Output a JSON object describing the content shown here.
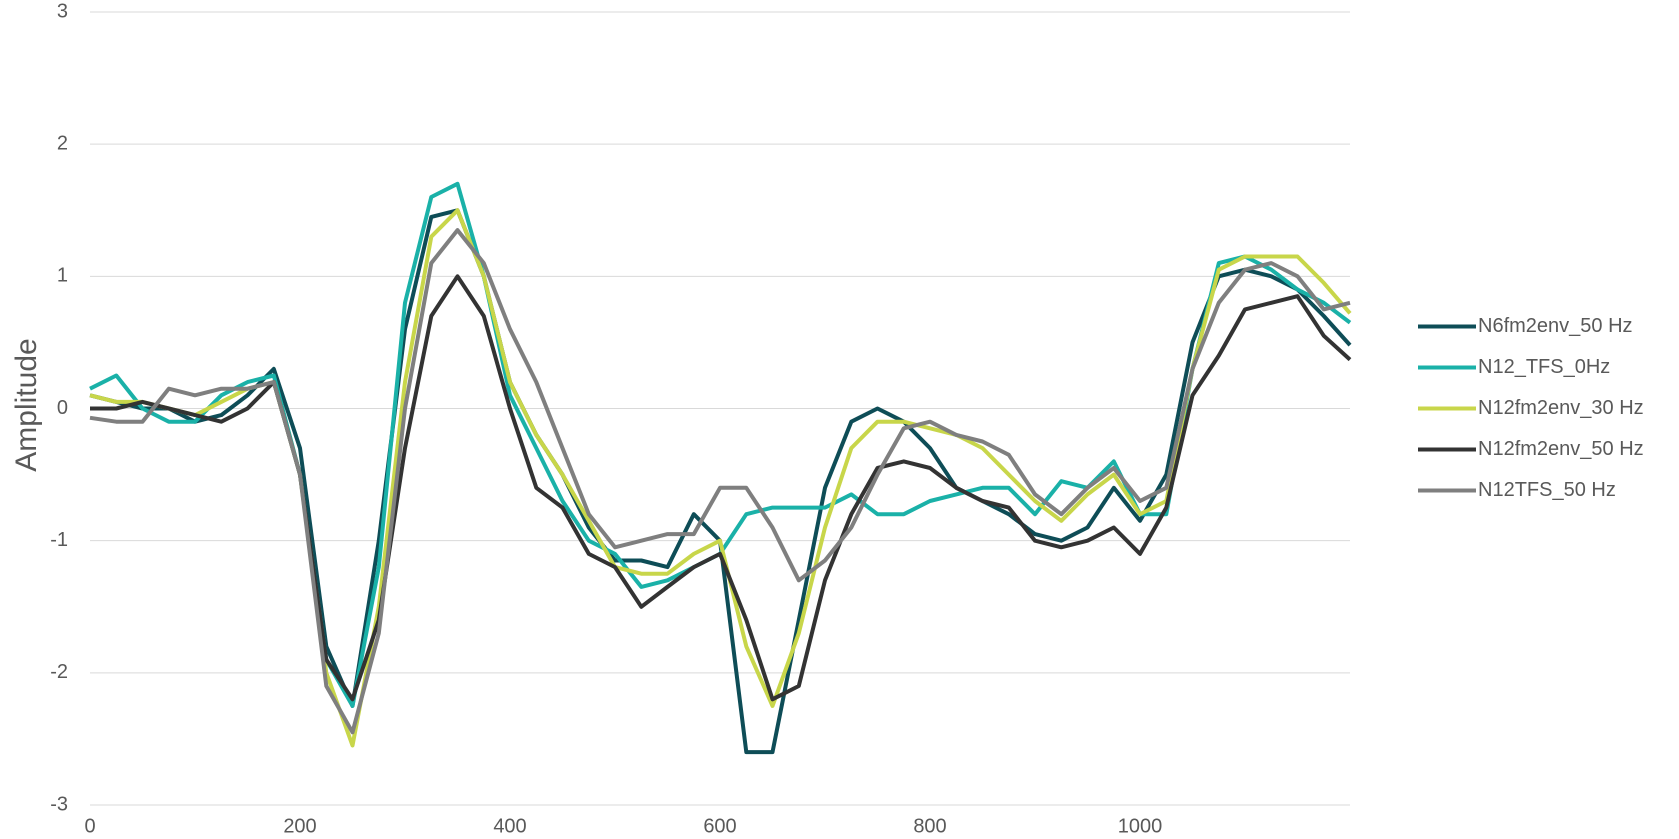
{
  "chart_data": {
    "type": "line",
    "y_label": "Amplitude",
    "x": [
      0,
      25,
      50,
      75,
      100,
      125,
      150,
      175,
      200,
      225,
      250,
      275,
      300,
      325,
      350,
      375,
      400,
      425,
      450,
      475,
      500,
      525,
      550,
      575,
      600,
      625,
      650,
      675,
      700,
      725,
      750,
      775,
      800,
      825,
      850,
      875,
      900,
      925,
      950,
      975,
      1000,
      1025,
      1050,
      1075,
      1100,
      1125,
      1150,
      1175,
      1200
    ],
    "series": [
      {
        "name": "N6fm2env_50 Hz",
        "color": "#0e4d57",
        "values": [
          0.1,
          0.05,
          0.0,
          0.0,
          -0.1,
          -0.05,
          0.1,
          0.3,
          -0.3,
          -1.8,
          -2.25,
          -1.0,
          0.6,
          1.45,
          1.5,
          1.0,
          0.2,
          -0.2,
          -0.5,
          -0.9,
          -1.15,
          -1.15,
          -1.2,
          -0.8,
          -1.0,
          -2.6,
          -2.6,
          -1.6,
          -0.6,
          -0.1,
          0.0,
          -0.1,
          -0.3,
          -0.6,
          -0.7,
          -0.8,
          -0.95,
          -1.0,
          -0.9,
          -0.6,
          -0.85,
          -0.5,
          0.5,
          1.0,
          1.05,
          1.0,
          0.9,
          0.7,
          0.48
        ]
      },
      {
        "name": "N12_TFS_0Hz",
        "color": "#1ab1a8",
        "values": [
          0.15,
          0.25,
          0.0,
          -0.1,
          -0.1,
          0.1,
          0.2,
          0.25,
          -0.5,
          -1.9,
          -2.25,
          -1.2,
          0.8,
          1.6,
          1.7,
          1.0,
          0.1,
          -0.3,
          -0.7,
          -1.0,
          -1.1,
          -1.35,
          -1.3,
          -1.2,
          -1.1,
          -0.8,
          -0.75,
          -0.75,
          -0.75,
          -0.65,
          -0.8,
          -0.8,
          -0.7,
          -0.65,
          -0.6,
          -0.6,
          -0.8,
          -0.55,
          -0.6,
          -0.4,
          -0.8,
          -0.8,
          0.3,
          1.1,
          1.15,
          1.05,
          0.9,
          0.8,
          0.65
        ]
      },
      {
        "name": "N12fm2env_30 Hz",
        "color": "#c8d64a",
        "values": [
          0.1,
          0.05,
          0.05,
          0.0,
          -0.05,
          0.05,
          0.15,
          0.2,
          -0.5,
          -2.0,
          -2.55,
          -1.5,
          0.2,
          1.3,
          1.5,
          1.0,
          0.2,
          -0.2,
          -0.5,
          -0.85,
          -1.2,
          -1.25,
          -1.25,
          -1.1,
          -1.0,
          -1.8,
          -2.25,
          -1.7,
          -0.9,
          -0.3,
          -0.1,
          -0.1,
          -0.15,
          -0.2,
          -0.3,
          -0.5,
          -0.7,
          -0.85,
          -0.65,
          -0.5,
          -0.8,
          -0.7,
          0.3,
          1.05,
          1.15,
          1.15,
          1.15,
          0.95,
          0.72
        ]
      },
      {
        "name": "N12fm2env_50 Hz",
        "color": "#333333",
        "values": [
          0.0,
          0.0,
          0.05,
          0.0,
          -0.05,
          -0.1,
          0.0,
          0.2,
          -0.5,
          -1.9,
          -2.2,
          -1.6,
          -0.3,
          0.7,
          1.0,
          0.7,
          0.0,
          -0.6,
          -0.75,
          -1.1,
          -1.2,
          -1.5,
          -1.35,
          -1.2,
          -1.1,
          -1.6,
          -2.2,
          -2.1,
          -1.3,
          -0.8,
          -0.45,
          -0.4,
          -0.45,
          -0.6,
          -0.7,
          -0.75,
          -1.0,
          -1.05,
          -1.0,
          -0.9,
          -1.1,
          -0.75,
          0.1,
          0.4,
          0.75,
          0.8,
          0.85,
          0.55,
          0.37
        ]
      },
      {
        "name": "N12TFS_50 Hz",
        "color": "#7f7f7f",
        "values": [
          -0.07,
          -0.1,
          -0.1,
          0.15,
          0.1,
          0.15,
          0.15,
          0.2,
          -0.5,
          -2.1,
          -2.45,
          -1.7,
          0.0,
          1.1,
          1.35,
          1.1,
          0.6,
          0.2,
          -0.3,
          -0.8,
          -1.05,
          -1.0,
          -0.95,
          -0.95,
          -0.6,
          -0.6,
          -0.9,
          -1.3,
          -1.15,
          -0.9,
          -0.5,
          -0.15,
          -0.1,
          -0.2,
          -0.25,
          -0.35,
          -0.65,
          -0.8,
          -0.6,
          -0.45,
          -0.7,
          -0.6,
          0.3,
          0.8,
          1.05,
          1.1,
          1.0,
          0.75,
          0.8
        ]
      }
    ],
    "xlim": [
      0,
      1200
    ],
    "xticks": [
      0,
      200,
      400,
      600,
      800,
      1000
    ],
    "ylim": [
      -3,
      3
    ],
    "yticks": [
      -3,
      -2,
      -1,
      0,
      1,
      2,
      3
    ],
    "grid": true,
    "legend": "right"
  }
}
